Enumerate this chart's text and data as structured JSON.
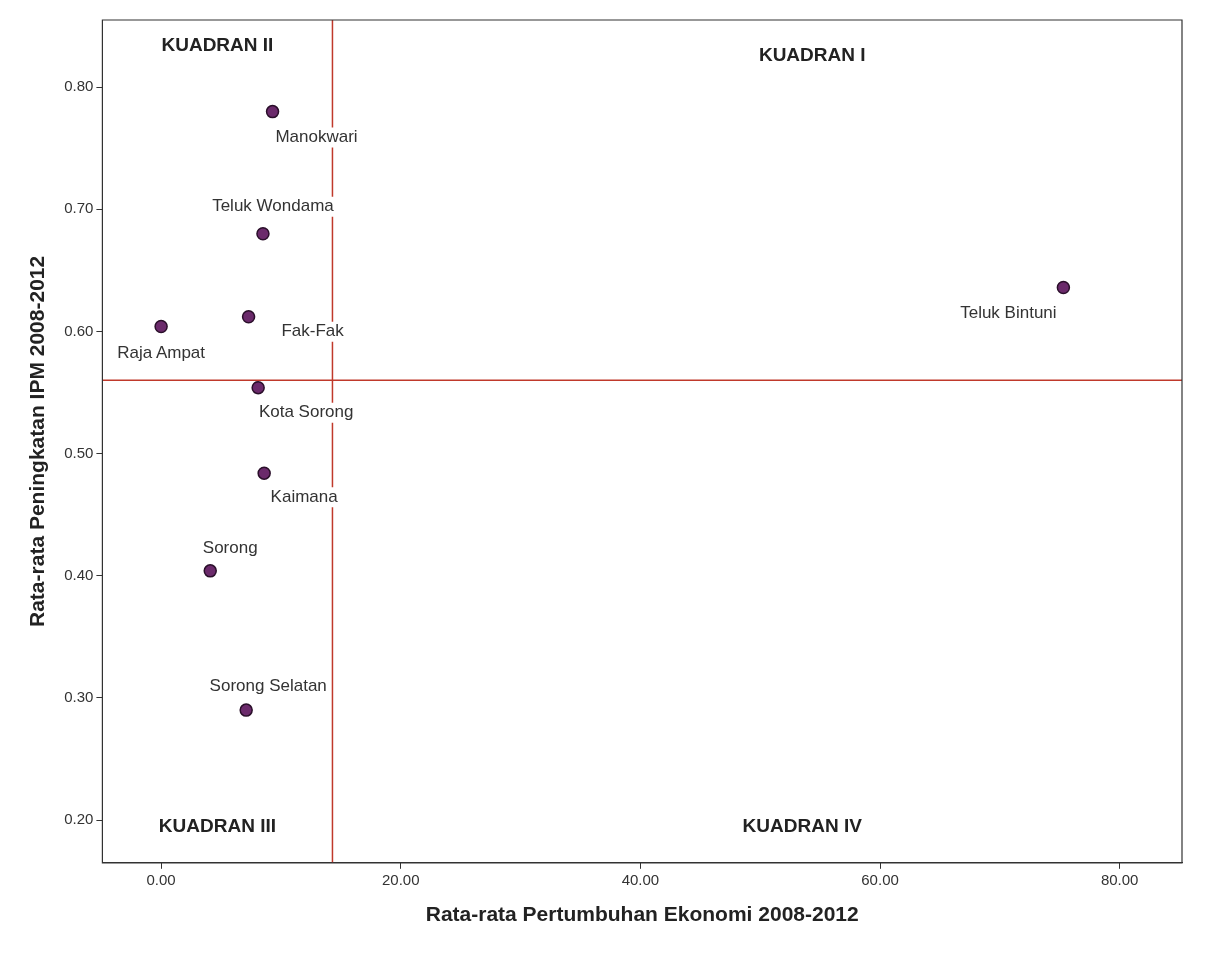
{
  "chart_data": {
    "type": "scatter",
    "xlabel": "Rata-rata Pertumbuhan Ekonomi 2008-2012",
    "ylabel": "Rata-rata Peningkatan IPM 2008-2012",
    "xlim": [
      -4.9,
      85.2
    ],
    "xticks": [
      {
        "value": 0,
        "label": "0.00"
      },
      {
        "value": 20,
        "label": "20.00"
      },
      {
        "value": 40,
        "label": "40.00"
      },
      {
        "value": 60,
        "label": "60.00"
      },
      {
        "value": 80,
        "label": "80.00"
      }
    ],
    "ylim": [
      0.165,
      0.855
    ],
    "yticks": [
      {
        "value": 0.2,
        "label": "0.20"
      },
      {
        "value": 0.3,
        "label": "0.30"
      },
      {
        "value": 0.4,
        "label": "0.40"
      },
      {
        "value": 0.5,
        "label": "0.50"
      },
      {
        "value": 0.6,
        "label": "0.60"
      },
      {
        "value": 0.7,
        "label": "0.70"
      },
      {
        "value": 0.8,
        "label": "0.80"
      }
    ],
    "series": [
      {
        "color": "#6b2a6b",
        "x": [
          9.3,
          8.5,
          0.0,
          7.3,
          8.1,
          8.6,
          4.1,
          7.1,
          75.3
        ],
        "values": [
          0.78,
          0.68,
          0.604,
          0.612,
          0.554,
          0.484,
          0.404,
          0.29,
          0.636
        ],
        "value_labels": [
          "Manokwari",
          "Teluk Wondama",
          "Raja Ampat",
          "Fak-Fak",
          "Kota Sorong",
          "Kaimana",
          "Sorong",
          "Sorong Selatan",
          "Teluk Bintuni"
        ]
      }
    ],
    "marker": "circle",
    "grid": false,
    "legend": false,
    "ref_lines": [
      {
        "axis": "x",
        "value": 14.3,
        "color": "#c0392b"
      },
      {
        "axis": "y",
        "value": 0.56,
        "color": "#c0392b"
      }
    ],
    "annotations": [
      "KUADRAN II",
      "KUADRAN I",
      "KUADRAN III",
      "KUADRAN IV"
    ]
  }
}
